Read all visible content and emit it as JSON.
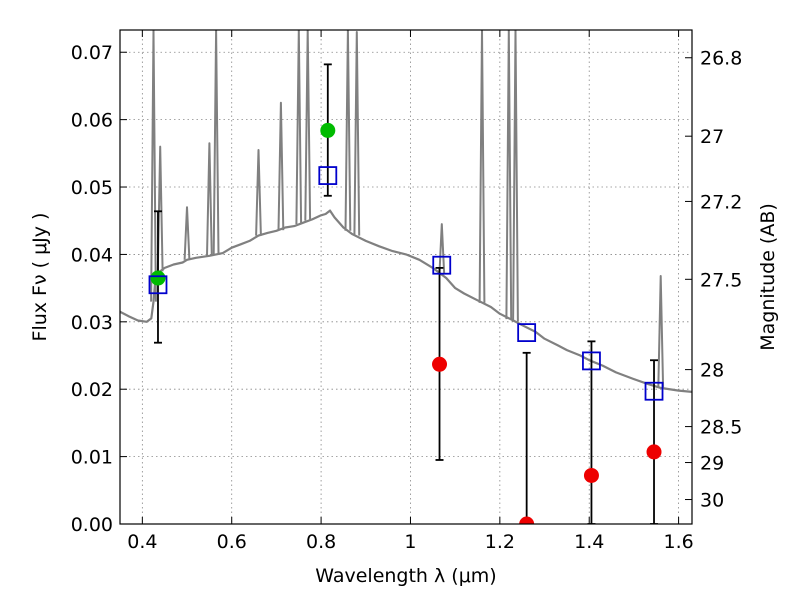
{
  "chart_data": {
    "type": "scatter",
    "xlabel": "Wavelength  λ (μm)",
    "ylabel": "Flux  Fν  ( μJy )",
    "ylabel_right": "Magnitude (AB)",
    "xlim": [
      0.35,
      1.63
    ],
    "ylim": [
      0.0,
      0.0733
    ],
    "grid": true,
    "xticks": [
      0.4,
      0.6,
      0.8,
      1.0,
      1.2,
      1.4,
      1.6
    ],
    "xtick_labels": [
      "0.4",
      "0.6",
      "0.8",
      "1",
      "1.2",
      "1.4",
      "1.6"
    ],
    "yticks": [
      0.0,
      0.01,
      0.02,
      0.03,
      0.04,
      0.05,
      0.06,
      0.07
    ],
    "ytick_labels": [
      "0.00",
      "0.01",
      "0.02",
      "0.03",
      "0.04",
      "0.05",
      "0.06",
      "0.07"
    ],
    "right_ticks": [
      {
        "mag": 26.8,
        "label": "26.8"
      },
      {
        "mag": 27.0,
        "label": "27"
      },
      {
        "mag": 27.2,
        "label": "27.2"
      },
      {
        "mag": 27.5,
        "label": "27.5"
      },
      {
        "mag": 28.0,
        "label": "28"
      },
      {
        "mag": 28.5,
        "label": "28.5"
      },
      {
        "mag": 29.0,
        "label": "29"
      },
      {
        "mag": 30.0,
        "label": "30"
      }
    ],
    "colors": {
      "spectrum": "#808080",
      "model": "#0000cc",
      "detected": "#00bb00",
      "upper_limit": "#ee0000",
      "errorbar": "#000000",
      "grid": "#888888"
    },
    "series": [
      {
        "name": "model spectrum",
        "kind": "line",
        "x": [
          0.35,
          0.37,
          0.39,
          0.41,
          0.42,
          0.425,
          0.428,
          0.43,
          0.435,
          0.44,
          0.45,
          0.47,
          0.49,
          0.5,
          0.52,
          0.55,
          0.58,
          0.6,
          0.62,
          0.64,
          0.66,
          0.68,
          0.7,
          0.72,
          0.74,
          0.76,
          0.78,
          0.8,
          0.81,
          0.82,
          0.83,
          0.85,
          0.87,
          0.9,
          0.93,
          0.96,
          0.99,
          1.02,
          1.05,
          1.08,
          1.1,
          1.12,
          1.15,
          1.18,
          1.2,
          1.23,
          1.25,
          1.28,
          1.3,
          1.33,
          1.35,
          1.38,
          1.4,
          1.43,
          1.46,
          1.5,
          1.53,
          1.56,
          1.6,
          1.63
        ],
        "y": [
          0.0315,
          0.0308,
          0.0302,
          0.03,
          0.0305,
          0.033,
          0.0355,
          0.0365,
          0.037,
          0.0375,
          0.038,
          0.0385,
          0.0388,
          0.0392,
          0.0395,
          0.0398,
          0.0402,
          0.041,
          0.0415,
          0.042,
          0.0428,
          0.0432,
          0.0435,
          0.044,
          0.0442,
          0.0447,
          0.0452,
          0.0458,
          0.046,
          0.0465,
          0.0455,
          0.044,
          0.043,
          0.042,
          0.0412,
          0.0405,
          0.04,
          0.0392,
          0.038,
          0.0365,
          0.035,
          0.0342,
          0.0332,
          0.0322,
          0.0312,
          0.0302,
          0.0295,
          0.0285,
          0.0275,
          0.0265,
          0.0258,
          0.025,
          0.0243,
          0.0235,
          0.0225,
          0.0215,
          0.0208,
          0.0202,
          0.0198,
          0.0196
        ]
      },
      {
        "name": "emission lines",
        "kind": "spikes",
        "lines": [
          {
            "x": 0.425,
            "base": 0.033,
            "peak": 0.0733
          },
          {
            "x": 0.44,
            "base": 0.0375,
            "peak": 0.056
          },
          {
            "x": 0.5,
            "base": 0.0392,
            "peak": 0.047
          },
          {
            "x": 0.55,
            "base": 0.0398,
            "peak": 0.0565
          },
          {
            "x": 0.565,
            "base": 0.04,
            "peak": 0.0733
          },
          {
            "x": 0.66,
            "base": 0.0428,
            "peak": 0.0555
          },
          {
            "x": 0.71,
            "base": 0.0436,
            "peak": 0.0625
          },
          {
            "x": 0.75,
            "base": 0.0445,
            "peak": 0.0733
          },
          {
            "x": 0.77,
            "base": 0.045,
            "peak": 0.0733
          },
          {
            "x": 0.86,
            "base": 0.0435,
            "peak": 0.0733
          },
          {
            "x": 0.88,
            "base": 0.0428,
            "peak": 0.073
          },
          {
            "x": 1.07,
            "base": 0.037,
            "peak": 0.0445
          },
          {
            "x": 1.16,
            "base": 0.0328,
            "peak": 0.0733
          },
          {
            "x": 1.22,
            "base": 0.0304,
            "peak": 0.0733
          },
          {
            "x": 1.235,
            "base": 0.03,
            "peak": 0.0733
          },
          {
            "x": 1.56,
            "base": 0.0202,
            "peak": 0.0368
          }
        ]
      },
      {
        "name": "model photometry",
        "kind": "open-square",
        "x": [
          0.435,
          0.815,
          1.07,
          1.26,
          1.405,
          1.545
        ],
        "y": [
          0.0355,
          0.0517,
          0.0384,
          0.0284,
          0.0242,
          0.0197
        ]
      },
      {
        "name": "detections",
        "kind": "filled-circle",
        "x": [
          0.435,
          0.815
        ],
        "y": [
          0.0365,
          0.0584
        ]
      },
      {
        "name": "non-detections",
        "kind": "filled-circle",
        "x": [
          1.065,
          1.26,
          1.405,
          1.545
        ],
        "y": [
          0.0237,
          0.0,
          0.0072,
          0.0107
        ]
      },
      {
        "name": "error bars",
        "kind": "errorbar",
        "bars": [
          {
            "x": 0.435,
            "low": 0.0269,
            "high": 0.0464
          },
          {
            "x": 0.815,
            "low": 0.0487,
            "high": 0.0682
          },
          {
            "x": 1.065,
            "low": 0.0095,
            "high": 0.038
          },
          {
            "x": 1.26,
            "low": 0.0,
            "high": 0.0254
          },
          {
            "x": 1.405,
            "low": 0.0,
            "high": 0.0271
          },
          {
            "x": 1.545,
            "low": 0.0,
            "high": 0.0243
          }
        ]
      }
    ]
  }
}
